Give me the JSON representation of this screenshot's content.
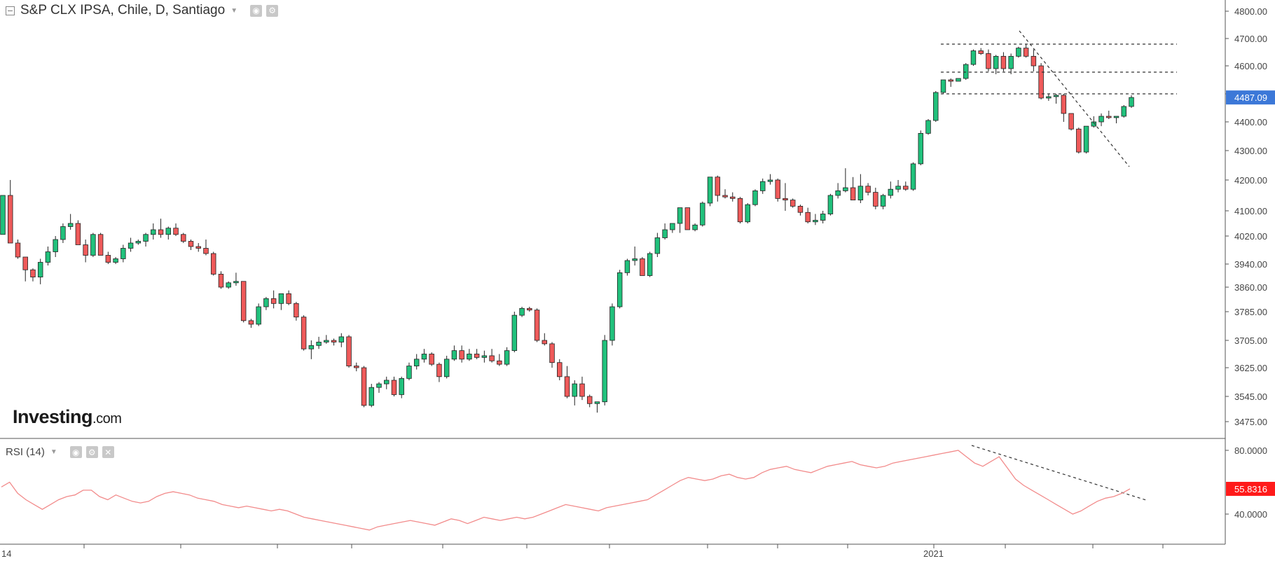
{
  "header": {
    "title": "S&P CLX IPSA, Chile, D, Santiago",
    "rsi_label": "RSI (14)"
  },
  "branding": {
    "logo_main": "Investing",
    "logo_suffix": ".com"
  },
  "icons": {
    "collapse": "minus-square-icon",
    "settings": "gear-icon",
    "eye": "eye-icon",
    "close": "close-icon",
    "caret": "caret-down-icon"
  },
  "colors": {
    "up": "#21c17c",
    "down": "#ef5a5a",
    "rsi_line": "#f28b8b",
    "last_price_badge": "#3c78d8",
    "rsi_badge": "#ff1a1a",
    "grid": "#e6e6e6"
  },
  "chart_data": [
    {
      "type": "candlestick",
      "title": "S&P CLX IPSA, Chile, D, Santiago",
      "y_ticks": [
        "4800.00",
        "4700.00",
        "4600.00",
        "4500.00",
        "4400.00",
        "4300.00",
        "4200.00",
        "4100.00",
        "4020.00",
        "3940.00",
        "3860.00",
        "3785.00",
        "3705.00",
        "3625.00",
        "3545.00",
        "3475.00"
      ],
      "x_labels": [
        "14",
        "2021"
      ],
      "last_price": "4487.09",
      "candles": [
        [
          4025,
          4150,
          4025,
          4150
        ],
        [
          4150,
          4200,
          4000,
          4000
        ],
        [
          4000,
          4010,
          3955,
          3960
        ],
        [
          3960,
          3960,
          3880,
          3920
        ],
        [
          3920,
          3925,
          3880,
          3895
        ],
        [
          3895,
          3955,
          3870,
          3945
        ],
        [
          3945,
          3990,
          3935,
          3975
        ],
        [
          3975,
          4020,
          3960,
          4010
        ],
        [
          4010,
          4060,
          4000,
          4050
        ],
        [
          4050,
          4090,
          4040,
          4060
        ],
        [
          4060,
          4070,
          3995,
          3995
        ],
        [
          3995,
          4010,
          3945,
          3965
        ],
        [
          3965,
          4030,
          3960,
          4025
        ],
        [
          4025,
          4030,
          3965,
          3965
        ],
        [
          3965,
          3975,
          3940,
          3945
        ],
        [
          3945,
          3960,
          3940,
          3955
        ],
        [
          3955,
          3995,
          3945,
          3985
        ],
        [
          3985,
          4015,
          3975,
          4000
        ],
        [
          4000,
          4010,
          3995,
          4005
        ],
        [
          4005,
          4030,
          3990,
          4025
        ],
        [
          4025,
          4060,
          4010,
          4040
        ],
        [
          4040,
          4075,
          4015,
          4025
        ],
        [
          4025,
          4050,
          4010,
          4045
        ],
        [
          4045,
          4060,
          4020,
          4025
        ],
        [
          4025,
          4030,
          4000,
          4005
        ],
        [
          4005,
          4010,
          3980,
          3990
        ],
        [
          3990,
          4000,
          3975,
          3985
        ],
        [
          3985,
          4010,
          3965,
          3970
        ],
        [
          3970,
          3975,
          3900,
          3905
        ],
        [
          3905,
          3915,
          3855,
          3860
        ],
        [
          3860,
          3880,
          3855,
          3875
        ],
        [
          3875,
          3910,
          3865,
          3880
        ],
        [
          3880,
          3880,
          3755,
          3760
        ],
        [
          3760,
          3765,
          3740,
          3750
        ],
        [
          3750,
          3810,
          3745,
          3800
        ],
        [
          3800,
          3830,
          3790,
          3825
        ],
        [
          3825,
          3850,
          3795,
          3810
        ],
        [
          3810,
          3840,
          3790,
          3840
        ],
        [
          3840,
          3850,
          3805,
          3810
        ],
        [
          3810,
          3815,
          3760,
          3770
        ],
        [
          3770,
          3775,
          3675,
          3680
        ],
        [
          3680,
          3705,
          3650,
          3690
        ],
        [
          3690,
          3715,
          3680,
          3700
        ],
        [
          3700,
          3720,
          3695,
          3705
        ],
        [
          3705,
          3710,
          3690,
          3700
        ],
        [
          3700,
          3725,
          3685,
          3715
        ],
        [
          3715,
          3720,
          3625,
          3630
        ],
        [
          3630,
          3640,
          3615,
          3625
        ],
        [
          3625,
          3630,
          3515,
          3520
        ],
        [
          3520,
          3580,
          3515,
          3570
        ],
        [
          3570,
          3585,
          3555,
          3580
        ],
        [
          3580,
          3600,
          3565,
          3590
        ],
        [
          3590,
          3600,
          3545,
          3550
        ],
        [
          3550,
          3600,
          3540,
          3595
        ],
        [
          3595,
          3640,
          3590,
          3630
        ],
        [
          3630,
          3665,
          3620,
          3650
        ],
        [
          3650,
          3680,
          3640,
          3665
        ],
        [
          3665,
          3670,
          3630,
          3635
        ],
        [
          3635,
          3640,
          3585,
          3600
        ],
        [
          3600,
          3660,
          3595,
          3650
        ],
        [
          3650,
          3690,
          3645,
          3675
        ],
        [
          3675,
          3690,
          3640,
          3650
        ],
        [
          3650,
          3680,
          3645,
          3665
        ],
        [
          3665,
          3680,
          3650,
          3655
        ],
        [
          3655,
          3675,
          3640,
          3660
        ],
        [
          3660,
          3680,
          3640,
          3645
        ],
        [
          3645,
          3665,
          3630,
          3635
        ],
        [
          3635,
          3685,
          3630,
          3675
        ],
        [
          3675,
          3785,
          3670,
          3775
        ],
        [
          3775,
          3800,
          3770,
          3795
        ],
        [
          3795,
          3800,
          3785,
          3790
        ],
        [
          3790,
          3795,
          3700,
          3705
        ],
        [
          3705,
          3725,
          3690,
          3695
        ],
        [
          3695,
          3700,
          3625,
          3640
        ],
        [
          3640,
          3650,
          3590,
          3600
        ],
        [
          3600,
          3630,
          3540,
          3545
        ],
        [
          3545,
          3590,
          3520,
          3580
        ],
        [
          3580,
          3600,
          3535,
          3545
        ],
        [
          3545,
          3550,
          3515,
          3525
        ],
        [
          3525,
          3530,
          3500,
          3530
        ],
        [
          3530,
          3720,
          3520,
          3705
        ],
        [
          3705,
          3810,
          3690,
          3800
        ],
        [
          3800,
          3920,
          3795,
          3910
        ],
        [
          3910,
          3955,
          3900,
          3950
        ],
        [
          3950,
          3990,
          3935,
          3955
        ],
        [
          3955,
          3960,
          3900,
          3900
        ],
        [
          3900,
          3975,
          3895,
          3970
        ],
        [
          3970,
          4030,
          3960,
          4015
        ],
        [
          4015,
          4060,
          4010,
          4040
        ],
        [
          4040,
          4060,
          4030,
          4060
        ],
        [
          4060,
          4105,
          4030,
          4110
        ],
        [
          4110,
          4110,
          4040,
          4040
        ],
        [
          4040,
          4060,
          4035,
          4055
        ],
        [
          4055,
          4130,
          4050,
          4125
        ],
        [
          4125,
          4210,
          4115,
          4210
        ],
        [
          4210,
          4215,
          4130,
          4150
        ],
        [
          4150,
          4170,
          4140,
          4145
        ],
        [
          4145,
          4160,
          4130,
          4140
        ],
        [
          4140,
          4145,
          4060,
          4065
        ],
        [
          4065,
          4125,
          4060,
          4120
        ],
        [
          4120,
          4170,
          4115,
          4165
        ],
        [
          4165,
          4205,
          4155,
          4195
        ],
        [
          4195,
          4220,
          4185,
          4200
        ],
        [
          4200,
          4205,
          4130,
          4140
        ],
        [
          4140,
          4190,
          4100,
          4135
        ],
        [
          4135,
          4140,
          4110,
          4115
        ],
        [
          4115,
          4120,
          4085,
          4095
        ],
        [
          4095,
          4110,
          4060,
          4065
        ],
        [
          4065,
          4090,
          4055,
          4070
        ],
        [
          4070,
          4100,
          4060,
          4090
        ],
        [
          4090,
          4155,
          4085,
          4150
        ],
        [
          4150,
          4190,
          4140,
          4165
        ],
        [
          4165,
          4240,
          4160,
          4175
        ],
        [
          4175,
          4210,
          4135,
          4135
        ],
        [
          4135,
          4220,
          4125,
          4180
        ],
        [
          4180,
          4190,
          4150,
          4160
        ],
        [
          4160,
          4175,
          4105,
          4115
        ],
        [
          4115,
          4155,
          4105,
          4150
        ],
        [
          4150,
          4195,
          4140,
          4170
        ],
        [
          4170,
          4200,
          4160,
          4180
        ],
        [
          4180,
          4195,
          4165,
          4170
        ],
        [
          4170,
          4260,
          4165,
          4255
        ],
        [
          4255,
          4370,
          4250,
          4360
        ],
        [
          4360,
          4410,
          4355,
          4405
        ],
        [
          4405,
          4510,
          4400,
          4505
        ],
        [
          4505,
          4550,
          4500,
          4550
        ],
        [
          4550,
          4555,
          4525,
          4545
        ],
        [
          4545,
          4555,
          4545,
          4555
        ],
        [
          4555,
          4610,
          4550,
          4605
        ],
        [
          4605,
          4660,
          4600,
          4655
        ],
        [
          4655,
          4665,
          4640,
          4645
        ],
        [
          4645,
          4660,
          4580,
          4590
        ],
        [
          4590,
          4640,
          4570,
          4635
        ],
        [
          4635,
          4650,
          4580,
          4590
        ],
        [
          4590,
          4645,
          4570,
          4635
        ],
        [
          4635,
          4670,
          4630,
          4665
        ],
        [
          4665,
          4680,
          4630,
          4635
        ],
        [
          4635,
          4660,
          4580,
          4600
        ],
        [
          4600,
          4610,
          4480,
          4485
        ],
        [
          4485,
          4500,
          4475,
          4490
        ],
        [
          4490,
          4500,
          4465,
          4495
        ],
        [
          4495,
          4500,
          4400,
          4430
        ],
        [
          4430,
          4430,
          4370,
          4375
        ],
        [
          4375,
          4380,
          4290,
          4295
        ],
        [
          4295,
          4380,
          4290,
          4385
        ],
        [
          4385,
          4420,
          4380,
          4400
        ],
        [
          4400,
          4430,
          4385,
          4420
        ],
        [
          4420,
          4440,
          4410,
          4415
        ],
        [
          4415,
          4420,
          4395,
          4420
        ],
        [
          4420,
          4460,
          4415,
          4455
        ],
        [
          4455,
          4495,
          4450,
          4487.09
        ]
      ]
    },
    {
      "type": "line",
      "title": "RSI (14)",
      "y_ticks": [
        "80.0000",
        "40.0000"
      ],
      "last_value": "55.8316",
      "values": [
        57,
        60,
        53,
        49,
        46,
        43,
        46,
        49,
        51,
        52,
        55,
        55,
        51,
        49,
        52,
        50,
        48,
        47,
        48,
        51,
        53,
        54,
        53,
        52,
        50,
        49,
        48,
        46,
        45,
        44,
        45,
        44,
        43,
        42,
        43,
        42,
        40,
        38,
        37,
        36,
        35,
        34,
        33,
        32,
        31,
        30,
        32,
        33,
        34,
        35,
        36,
        35,
        34,
        33,
        35,
        37,
        36,
        34,
        36,
        38,
        37,
        36,
        37,
        38,
        37,
        38,
        40,
        42,
        44,
        46,
        45,
        44,
        43,
        42,
        44,
        45,
        46,
        47,
        48,
        49,
        52,
        55,
        58,
        61,
        63,
        62,
        61,
        62,
        64,
        65,
        63,
        62,
        63,
        66,
        68,
        69,
        70,
        68,
        67,
        66,
        68,
        70,
        71,
        72,
        73,
        71,
        70,
        69,
        70,
        72,
        73,
        74,
        75,
        76,
        77,
        78,
        79,
        80,
        76,
        72,
        70,
        73,
        76,
        69,
        62,
        58,
        55,
        52,
        49,
        46,
        43,
        40,
        42,
        45,
        48,
        50,
        51,
        53,
        55.8316
      ]
    }
  ]
}
